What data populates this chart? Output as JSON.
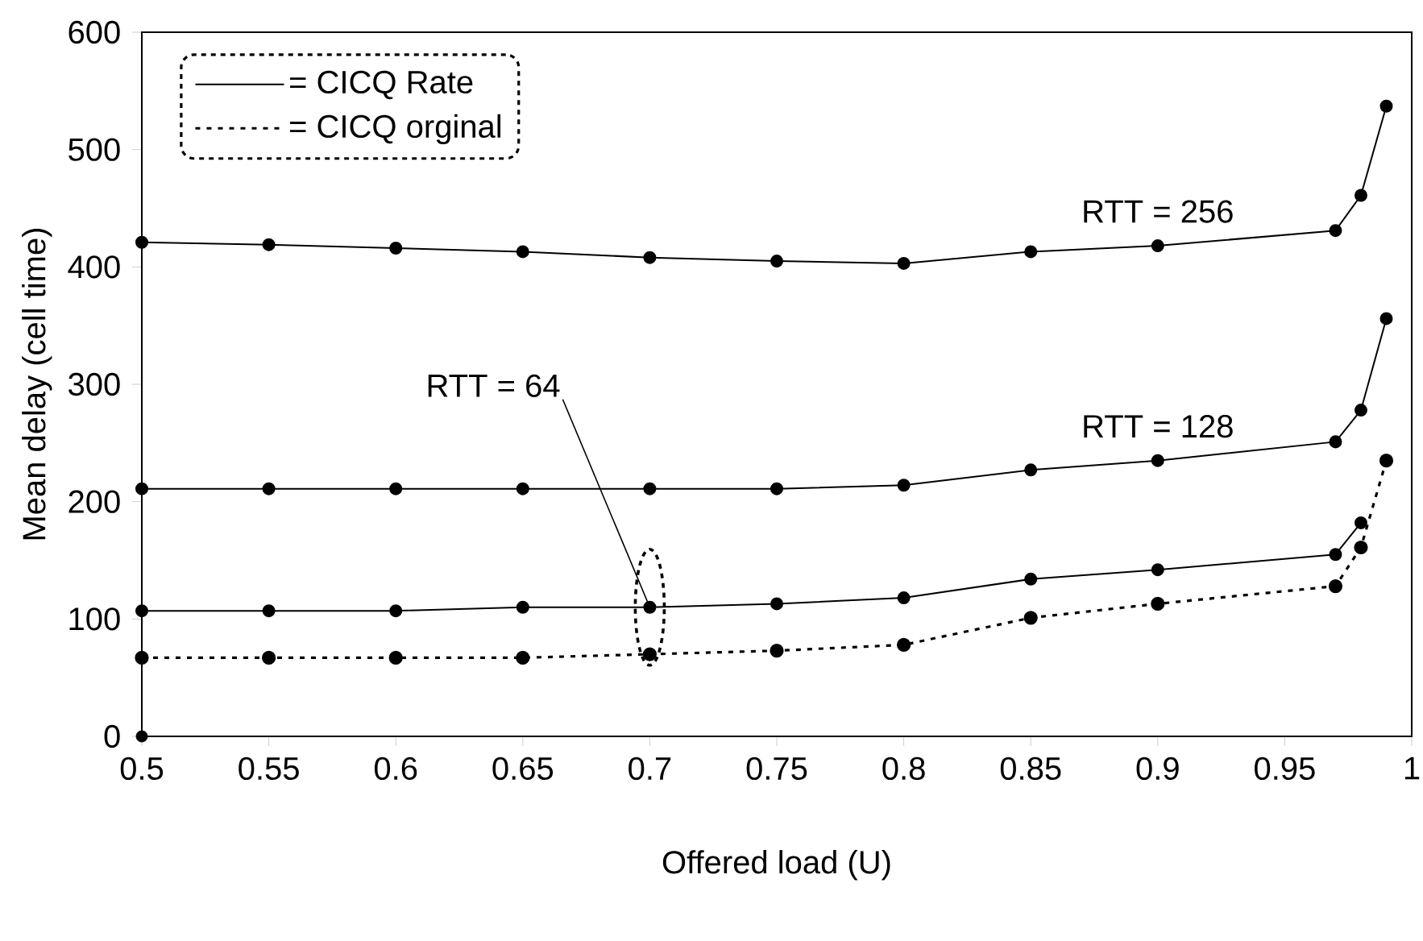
{
  "chart_data": {
    "type": "line",
    "xlabel": "Offered load (U)",
    "ylabel": "Mean delay (cell time)",
    "x": [
      0.5,
      0.55,
      0.6,
      0.65,
      0.7,
      0.75,
      0.8,
      0.85,
      0.9,
      0.97,
      0.98,
      0.99
    ],
    "series": [
      {
        "name": "= CICQ Rate",
        "color": "#000000",
        "line_style": "solid",
        "values": [
          421,
          419,
          416,
          413,
          408,
          405,
          403,
          413,
          418,
          431,
          461,
          537
        ]
      },
      {
        "color": "#000000",
        "line_style": "solid",
        "values": [
          211,
          211,
          211,
          211,
          211,
          211,
          214,
          227,
          235,
          251,
          278,
          356
        ]
      },
      {
        "color": "#000000",
        "line_style": "solid",
        "x": [
          0.5,
          0.55,
          0.6,
          0.65,
          0.7,
          0.75,
          0.8,
          0.85,
          0.9,
          0.97,
          0.98
        ],
        "values": [
          107,
          107,
          107,
          110,
          110,
          113,
          118,
          134,
          142,
          155,
          182
        ]
      },
      {
        "name": "= CICQ orginal",
        "color": "#000000",
        "line_style": "dotted",
        "values": [
          67,
          67,
          67,
          67,
          70,
          73,
          78,
          101,
          113,
          128,
          161,
          235
        ]
      },
      {
        "type": "scatter",
        "color": "#000000",
        "x": [
          0.5
        ],
        "values": [
          0
        ]
      }
    ],
    "xlim": [
      0.5,
      1
    ],
    "xticks": [
      0.5,
      0.55,
      0.6,
      0.65,
      0.7,
      0.75,
      0.8,
      0.85,
      0.9,
      0.95,
      1
    ],
    "ylim": [
      0,
      600
    ],
    "yticks": [
      0,
      100,
      200,
      300,
      400,
      500,
      600
    ],
    "marker": "circle",
    "grid": false,
    "legend": "top left",
    "annotations": [
      "RTT = 256",
      "RTT = 128",
      {
        "text": "RTT = 64",
        "x": 0.7,
        "y": 110
      }
    ]
  }
}
